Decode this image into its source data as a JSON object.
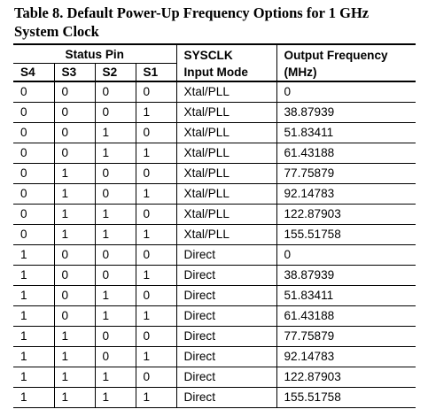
{
  "caption": {
    "line1": "Table 8. Default Power-Up Frequency Options for 1 GHz",
    "line2": "System Clock"
  },
  "header": {
    "status_pin": "Status Pin",
    "sysclk_1": "SYSCLK",
    "sysclk_2": "Input Mode",
    "output_1": "Output Frequency",
    "output_2": "(MHz)",
    "s4": "S4",
    "s3": "S3",
    "s2": "S2",
    "s1": "S1"
  },
  "rows": [
    {
      "s4": "0",
      "s3": "0",
      "s2": "0",
      "s1": "0",
      "mode": "Xtal/PLL",
      "freq": "0"
    },
    {
      "s4": "0",
      "s3": "0",
      "s2": "0",
      "s1": "1",
      "mode": "Xtal/PLL",
      "freq": "38.87939"
    },
    {
      "s4": "0",
      "s3": "0",
      "s2": "1",
      "s1": "0",
      "mode": "Xtal/PLL",
      "freq": "51.83411"
    },
    {
      "s4": "0",
      "s3": "0",
      "s2": "1",
      "s1": "1",
      "mode": "Xtal/PLL",
      "freq": "61.43188"
    },
    {
      "s4": "0",
      "s3": "1",
      "s2": "0",
      "s1": "0",
      "mode": "Xtal/PLL",
      "freq": "77.75879"
    },
    {
      "s4": "0",
      "s3": "1",
      "s2": "0",
      "s1": "1",
      "mode": "Xtal/PLL",
      "freq": "92.14783"
    },
    {
      "s4": "0",
      "s3": "1",
      "s2": "1",
      "s1": "0",
      "mode": "Xtal/PLL",
      "freq": "122.87903"
    },
    {
      "s4": "0",
      "s3": "1",
      "s2": "1",
      "s1": "1",
      "mode": "Xtal/PLL",
      "freq": "155.51758"
    },
    {
      "s4": "1",
      "s3": "0",
      "s2": "0",
      "s1": "0",
      "mode": "Direct",
      "freq": "0"
    },
    {
      "s4": "1",
      "s3": "0",
      "s2": "0",
      "s1": "1",
      "mode": "Direct",
      "freq": "38.87939"
    },
    {
      "s4": "1",
      "s3": "0",
      "s2": "1",
      "s1": "0",
      "mode": "Direct",
      "freq": "51.83411"
    },
    {
      "s4": "1",
      "s3": "0",
      "s2": "1",
      "s1": "1",
      "mode": "Direct",
      "freq": "61.43188"
    },
    {
      "s4": "1",
      "s3": "1",
      "s2": "0",
      "s1": "0",
      "mode": "Direct",
      "freq": "77.75879"
    },
    {
      "s4": "1",
      "s3": "1",
      "s2": "0",
      "s1": "1",
      "mode": "Direct",
      "freq": "92.14783"
    },
    {
      "s4": "1",
      "s3": "1",
      "s2": "1",
      "s1": "0",
      "mode": "Direct",
      "freq": "122.87903"
    },
    {
      "s4": "1",
      "s3": "1",
      "s2": "1",
      "s1": "1",
      "mode": "Direct",
      "freq": "155.51758"
    }
  ]
}
